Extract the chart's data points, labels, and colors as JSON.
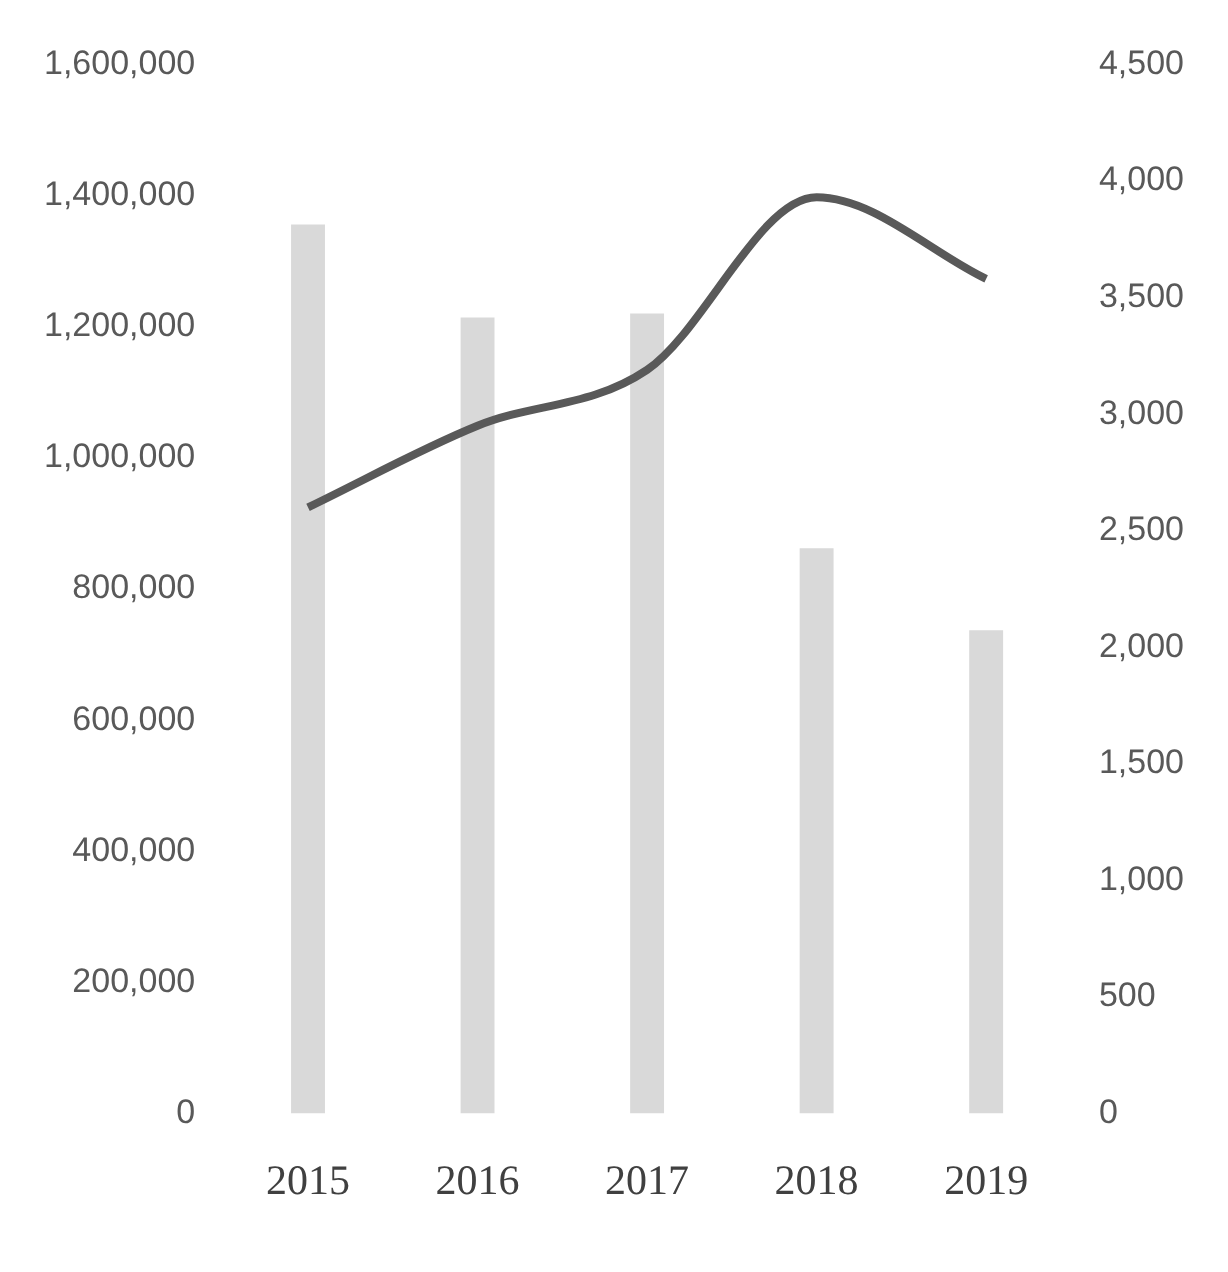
{
  "chart_data": {
    "type": "bar",
    "categories": [
      "2015",
      "2016",
      "2017",
      "2018",
      "2019"
    ],
    "series": [
      {
        "color": "#d9d9d9",
        "values": [
          1356000,
          1214000,
          1220000,
          862000,
          737000
        ]
      },
      {
        "type": "line",
        "axis": "y2",
        "color": "#595959",
        "values": [
          2600,
          2950,
          3190,
          3930,
          3580
        ]
      }
    ],
    "ylim": [
      0,
      1600000
    ],
    "yticks": [
      {
        "value": 0,
        "label": "0"
      },
      {
        "value": 200000,
        "label": "200,000"
      },
      {
        "value": 400000,
        "label": "400,000"
      },
      {
        "value": 600000,
        "label": "600,000"
      },
      {
        "value": 800000,
        "label": "800,000"
      },
      {
        "value": 1000000,
        "label": "1,000,000"
      },
      {
        "value": 1200000,
        "label": "1,200,000"
      },
      {
        "value": 1400000,
        "label": "1,400,000"
      },
      {
        "value": 1600000,
        "label": "1,600,000"
      }
    ],
    "y2lim": [
      0,
      4500
    ],
    "y2ticks": [
      0,
      500,
      {
        "value": 1000,
        "label": "1,000"
      },
      {
        "value": 1500,
        "label": "1,500"
      },
      {
        "value": 2000,
        "label": "2,000"
      },
      {
        "value": 2500,
        "label": "2,500"
      },
      {
        "value": 3000,
        "label": "3,000"
      },
      {
        "value": 3500,
        "label": "3,500"
      },
      {
        "value": 4000,
        "label": "4,000"
      },
      {
        "value": 4500,
        "label": "4,500"
      }
    ],
    "grid": false,
    "legend": false,
    "marker": "none"
  }
}
